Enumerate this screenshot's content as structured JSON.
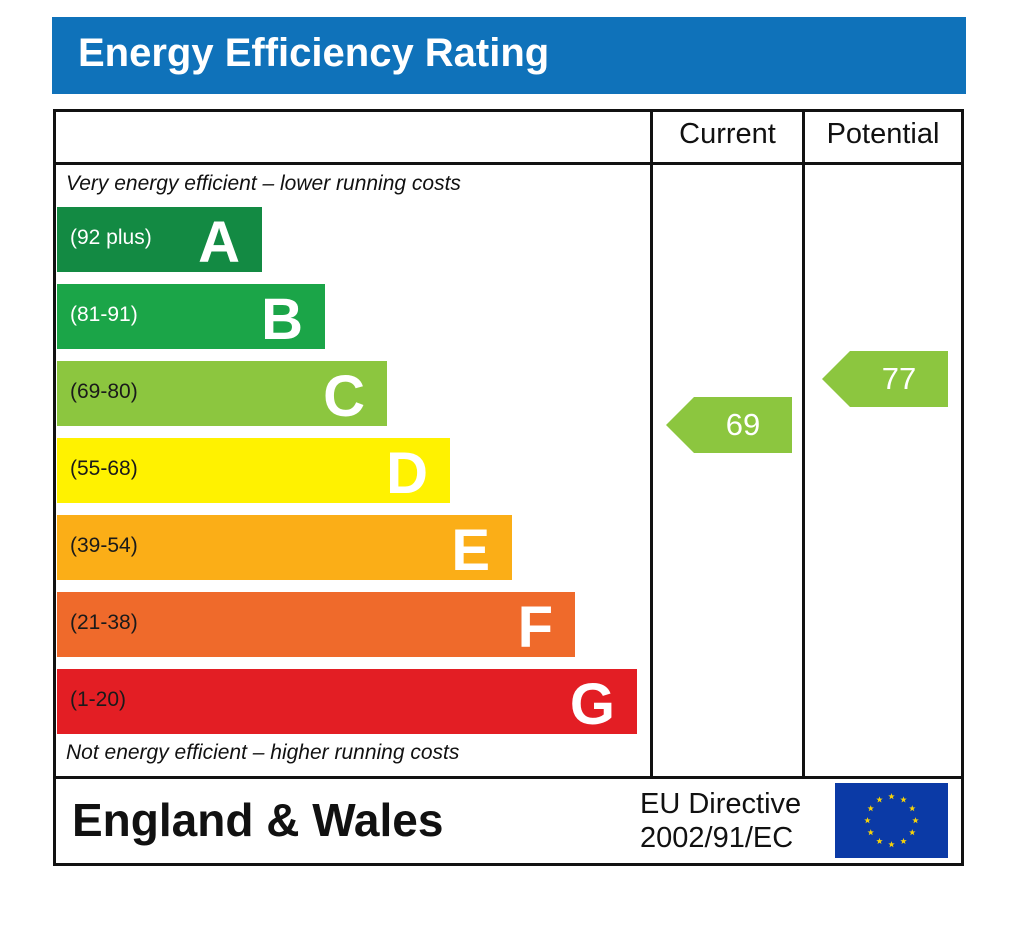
{
  "title": "Energy Efficiency Rating",
  "columns": {
    "current": "Current",
    "potential": "Potential"
  },
  "notes": {
    "top": "Very energy efficient – lower running costs",
    "bottom": "Not energy efficient – higher running costs"
  },
  "footer": {
    "region": "England & Wales",
    "directive_line1": "EU Directive",
    "directive_line2": "2002/91/EC"
  },
  "colors": {
    "title_bar": "#0f72ba",
    "rating_arrow": "#8cc63f",
    "eu_flag": "#0b3aa6",
    "eu_star": "#f5d20a"
  },
  "chart_data": {
    "type": "bar",
    "title": "Energy Efficiency Rating",
    "categories": [
      "A",
      "B",
      "C",
      "D",
      "E",
      "F",
      "G"
    ],
    "bands": [
      {
        "letter": "A",
        "range": "(92 plus)",
        "color": "#138a43",
        "range_color": "#ffffff"
      },
      {
        "letter": "B",
        "range": "(81-91)",
        "color": "#1ba548",
        "range_color": "#ffffff"
      },
      {
        "letter": "C",
        "range": "(69-80)",
        "color": "#8cc63f",
        "range_color": "#1a1a1a"
      },
      {
        "letter": "D",
        "range": "(55-68)",
        "color": "#fff200",
        "range_color": "#1a1a1a"
      },
      {
        "letter": "E",
        "range": "(39-54)",
        "color": "#fbae17",
        "range_color": "#1a1a1a"
      },
      {
        "letter": "F",
        "range": "(21-38)",
        "color": "#ef6a2b",
        "range_color": "#1a1a1a"
      },
      {
        "letter": "G",
        "range": "(1-20)",
        "color": "#e31e24",
        "range_color": "#1a1a1a"
      }
    ],
    "series": [
      {
        "name": "Current",
        "value": 69,
        "band": "C"
      },
      {
        "name": "Potential",
        "value": 77,
        "band": "C"
      }
    ]
  }
}
